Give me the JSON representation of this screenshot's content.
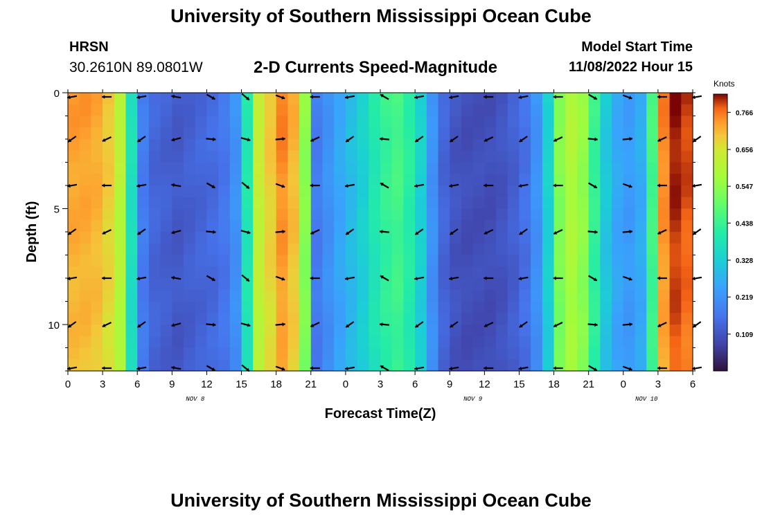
{
  "header": {
    "title": "University of Southern Mississippi Ocean Cube",
    "station": "HRSN",
    "coordinates": "30.2610N  89.0801W",
    "subtitle": "2-D Currents Speed-Magnitude",
    "model_start_label": "Model Start Time",
    "model_start_value": "11/08/2022 Hour 15"
  },
  "footer": {
    "title": "University of Southern Mississippi Ocean Cube"
  },
  "chart_data": {
    "type": "heatmap",
    "title": "2-D Currents Speed-Magnitude",
    "xlabel": "Forecast Time(Z)",
    "ylabel": "Depth (ft)",
    "x_ticks": [
      "0",
      "3",
      "6",
      "9",
      "12",
      "15",
      "18",
      "21",
      "0",
      "3",
      "6",
      "9",
      "12",
      "15",
      "18",
      "21",
      "0",
      "3",
      "6"
    ],
    "day_labels": [
      {
        "label": "NOV 8",
        "hour_index": 11
      },
      {
        "label": "NOV 9",
        "hour_index": 35
      },
      {
        "label": "NOV 10",
        "hour_index": 50
      }
    ],
    "x_range_hours": [
      0,
      54
    ],
    "y_ticks": [
      0,
      5,
      10
    ],
    "y_range_ft": [
      0,
      12
    ],
    "colorbar": {
      "label": "Knots",
      "ticks": [
        0.766,
        0.656,
        0.547,
        0.438,
        0.328,
        0.219,
        0.109
      ],
      "range": [
        0.0,
        0.82
      ]
    },
    "speed_profile_hours": [
      0,
      1,
      2,
      3,
      4,
      5,
      6,
      7,
      8,
      9,
      10,
      11,
      12,
      13,
      14,
      15,
      16,
      17,
      18,
      19,
      20,
      21,
      22,
      23,
      24,
      25,
      26,
      27,
      28,
      29,
      30,
      31,
      32,
      33,
      34,
      35,
      36,
      37,
      38,
      39,
      40,
      41,
      42,
      43,
      44,
      45,
      46,
      47,
      48,
      49,
      50,
      51,
      52,
      53,
      54
    ],
    "speed_profile_knots": [
      0.74,
      0.74,
      0.73,
      0.7,
      0.62,
      0.38,
      0.18,
      0.14,
      0.13,
      0.12,
      0.13,
      0.14,
      0.15,
      0.17,
      0.22,
      0.4,
      0.64,
      0.7,
      0.76,
      0.72,
      0.55,
      0.18,
      0.22,
      0.26,
      0.3,
      0.34,
      0.4,
      0.44,
      0.46,
      0.42,
      0.34,
      0.22,
      0.14,
      0.11,
      0.1,
      0.1,
      0.1,
      0.11,
      0.13,
      0.16,
      0.22,
      0.34,
      0.54,
      0.6,
      0.56,
      0.44,
      0.32,
      0.26,
      0.24,
      0.27,
      0.46,
      0.76,
      0.82,
      0.8,
      0.78
    ],
    "arrow_rows_ft": [
      0,
      2,
      4,
      6,
      8,
      10,
      12
    ]
  }
}
